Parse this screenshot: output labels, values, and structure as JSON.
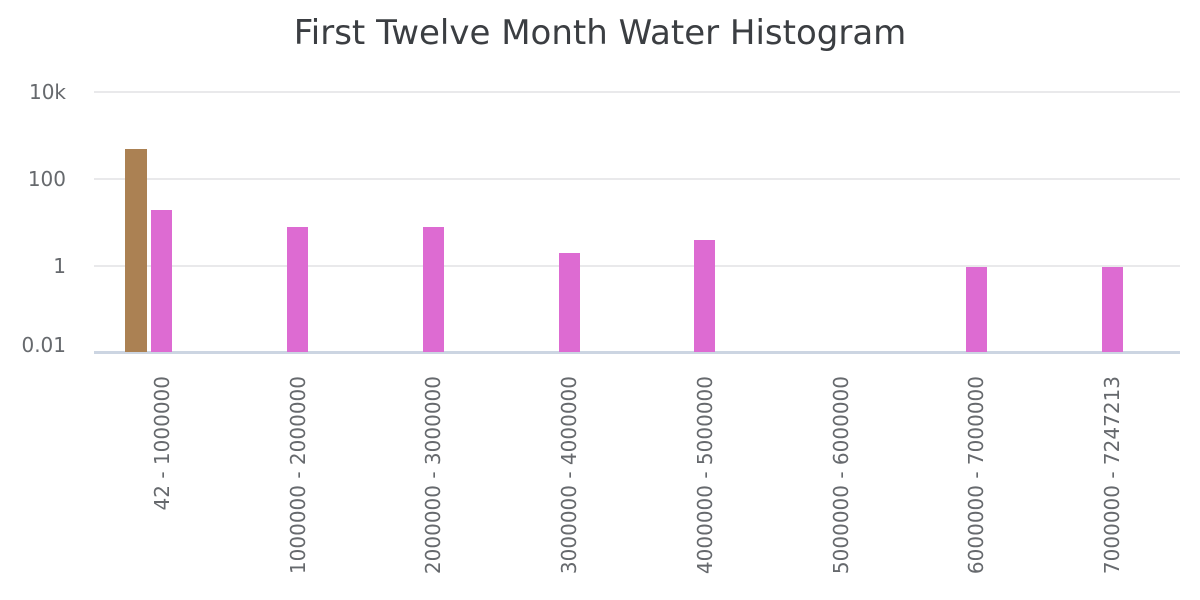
{
  "chart_data": {
    "type": "bar",
    "title": "First Twelve Month Water Histogram",
    "categories": [
      "42 - 1000000",
      "1000000 - 2000000",
      "2000000 - 3000000",
      "3000000 - 4000000",
      "4000000 - 5000000",
      "5000000 - 6000000",
      "6000000 - 7000000",
      "7000000 - 7247213"
    ],
    "series": [
      {
        "color": "#ab8153",
        "values": [
          500,
          0,
          0,
          0,
          0,
          0,
          0,
          0
        ]
      },
      {
        "color": "#dd6bd2",
        "values": [
          20,
          8,
          8,
          2,
          4,
          0,
          1,
          1
        ]
      }
    ],
    "yaxis": {
      "scale": "log",
      "range": [
        0.01,
        10000
      ],
      "tick_labels": [
        "10k",
        "100",
        "1",
        "0.01"
      ],
      "tick_values": [
        10000,
        100,
        1,
        0.01
      ],
      "grid": true
    },
    "xaxis": {
      "tick_rotation": -90
    },
    "legend_position": "none"
  },
  "style": {
    "title_color": "#3b3e42",
    "tick_color": "#66696d",
    "grid_color": "#e9e9eb",
    "axis_line_color": "#ccd5e2",
    "background": "#ffffff"
  }
}
